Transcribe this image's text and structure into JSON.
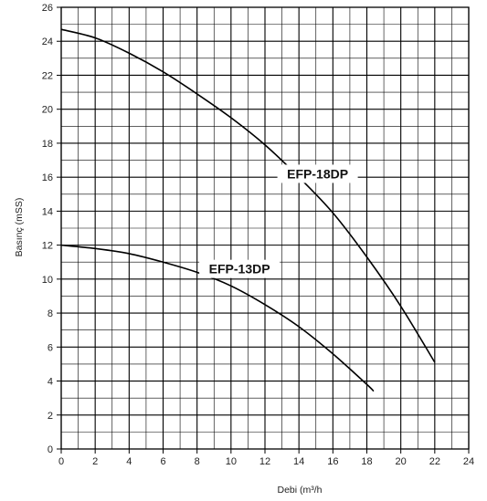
{
  "chart_data": {
    "type": "line",
    "title": "",
    "xlabel": "Debi (m³/h",
    "ylabel": "Basınç (mSS)",
    "xlim": [
      0,
      24
    ],
    "ylim": [
      0,
      26
    ],
    "x_ticks": [
      0,
      2,
      4,
      6,
      8,
      10,
      12,
      14,
      16,
      18,
      20,
      22,
      24
    ],
    "y_ticks": [
      0,
      2,
      4,
      6,
      8,
      10,
      12,
      14,
      16,
      18,
      20,
      22,
      24,
      26
    ],
    "grid": true,
    "legend": "none",
    "line_color": "#000000",
    "series": [
      {
        "name": "EFP-18DP",
        "x": [
          0,
          2,
          4,
          6,
          8,
          10,
          12,
          14,
          16,
          18,
          20,
          22
        ],
        "y": [
          24.7,
          24.2,
          23.3,
          22.2,
          20.9,
          19.5,
          17.9,
          16.0,
          13.9,
          11.3,
          8.4,
          5.1
        ]
      },
      {
        "name": "EFP-13DP",
        "x": [
          0,
          2,
          4,
          6,
          8,
          10,
          12,
          14,
          16,
          18,
          18.4
        ],
        "y": [
          12.0,
          11.8,
          11.5,
          11.0,
          10.4,
          9.6,
          8.5,
          7.2,
          5.6,
          3.8,
          3.4
        ]
      }
    ]
  }
}
